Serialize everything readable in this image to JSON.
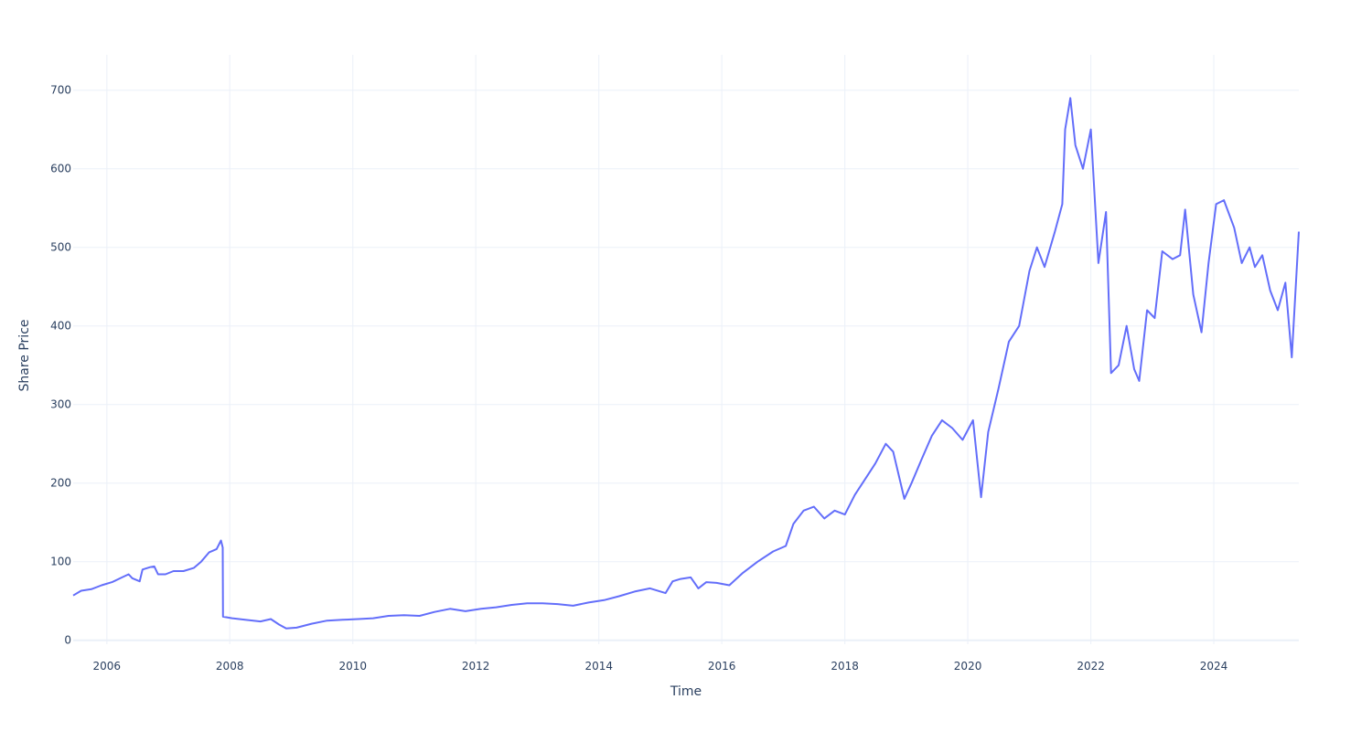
{
  "chart_data": {
    "type": "line",
    "title": "",
    "xlabel": "Time",
    "ylabel": "Share Price",
    "xlim": [
      "2005-06-15",
      "2025-05-20"
    ],
    "ylim": [
      -5,
      745
    ],
    "x_tick_labels": [
      "2006",
      "2008",
      "2010",
      "2012",
      "2014",
      "2016",
      "2018",
      "2020",
      "2022",
      "2024"
    ],
    "y_tick_labels": [
      "0",
      "100",
      "200",
      "300",
      "400",
      "500",
      "600",
      "700"
    ],
    "y_ticks": [
      0,
      100,
      200,
      300,
      400,
      500,
      600,
      700
    ],
    "grid": true,
    "legend": "none",
    "line_color": "#636efa",
    "series": [
      {
        "x": [
          "2005-06-15",
          "2005-08-01",
          "2005-10-01",
          "2005-12-01",
          "2006-02-01",
          "2006-04-01",
          "2006-05-10",
          "2006-06-01",
          "2006-07-15",
          "2006-08-01",
          "2006-09-15",
          "2006-10-10",
          "2006-11-01",
          "2006-12-15",
          "2007-02-01",
          "2007-04-01",
          "2007-06-01",
          "2007-07-15",
          "2007-09-01",
          "2007-10-15",
          "2007-11-10",
          "2007-11-20",
          "2007-11-22",
          "2008-01-15",
          "2008-04-01",
          "2008-07-01",
          "2008-09-01",
          "2008-10-20",
          "2008-12-01",
          "2009-02-01",
          "2009-05-01",
          "2009-08-01",
          "2009-11-01",
          "2010-02-01",
          "2010-05-01",
          "2010-08-01",
          "2010-11-01",
          "2011-02-01",
          "2011-05-01",
          "2011-08-01",
          "2011-11-01",
          "2012-02-01",
          "2012-05-01",
          "2012-08-01",
          "2012-11-01",
          "2013-02-01",
          "2013-05-01",
          "2013-08-01",
          "2013-11-01",
          "2014-02-01",
          "2014-05-01",
          "2014-08-01",
          "2014-11-01",
          "2015-02-01",
          "2015-03-15",
          "2015-05-01",
          "2015-07-01",
          "2015-08-15",
          "2015-10-01",
          "2015-12-01",
          "2016-02-15",
          "2016-05-01",
          "2016-08-01",
          "2016-11-01",
          "2017-01-15",
          "2017-03-01",
          "2017-05-01",
          "2017-07-01",
          "2017-09-01",
          "2017-11-01",
          "2018-01-01",
          "2018-03-01",
          "2018-05-01",
          "2018-07-01",
          "2018-09-01",
          "2018-10-15",
          "2018-12-20",
          "2019-02-01",
          "2019-04-01",
          "2019-06-01",
          "2019-08-01",
          "2019-10-01",
          "2019-12-01",
          "2020-02-01",
          "2020-03-20",
          "2020-05-01",
          "2020-07-01",
          "2020-09-01",
          "2020-11-01",
          "2021-01-01",
          "2021-02-15",
          "2021-04-01",
          "2021-06-01",
          "2021-07-15",
          "2021-08-01",
          "2021-09-01",
          "2021-10-01",
          "2021-11-15",
          "2022-01-01",
          "2022-02-15",
          "2022-04-01",
          "2022-05-01",
          "2022-06-15",
          "2022-08-01",
          "2022-09-15",
          "2022-10-15",
          "2022-12-01",
          "2023-01-15",
          "2023-03-01",
          "2023-05-01",
          "2023-06-15",
          "2023-07-15",
          "2023-09-01",
          "2023-10-20",
          "2023-12-01",
          "2024-01-15",
          "2024-03-01",
          "2024-05-01",
          "2024-06-15",
          "2024-08-01",
          "2024-09-01",
          "2024-10-15",
          "2024-12-01",
          "2025-01-15",
          "2025-03-01",
          "2025-04-08",
          "2025-05-20"
        ],
        "y": [
          57,
          63,
          65,
          70,
          74,
          80,
          84,
          79,
          75,
          90,
          93,
          94,
          84,
          84,
          88,
          88,
          92,
          100,
          112,
          116,
          127,
          118,
          30,
          28,
          26,
          24,
          27,
          20,
          15,
          16,
          21,
          25,
          26,
          27,
          28,
          31,
          32,
          31,
          36,
          40,
          37,
          40,
          42,
          45,
          47,
          47,
          46,
          44,
          48,
          51,
          56,
          62,
          66,
          60,
          75,
          78,
          80,
          66,
          74,
          73,
          70,
          85,
          100,
          113,
          120,
          148,
          165,
          170,
          155,
          165,
          160,
          185,
          205,
          225,
          250,
          240,
          180,
          200,
          230,
          260,
          280,
          270,
          255,
          280,
          182,
          265,
          320,
          380,
          400,
          470,
          500,
          475,
          520,
          555,
          650,
          690,
          630,
          600,
          650,
          480,
          545,
          340,
          350,
          400,
          345,
          330,
          420,
          410,
          495,
          485,
          490,
          548,
          440,
          392,
          480,
          555,
          560,
          525,
          480,
          500,
          475,
          490,
          445,
          420,
          455,
          360,
          520
        ]
      }
    ]
  }
}
